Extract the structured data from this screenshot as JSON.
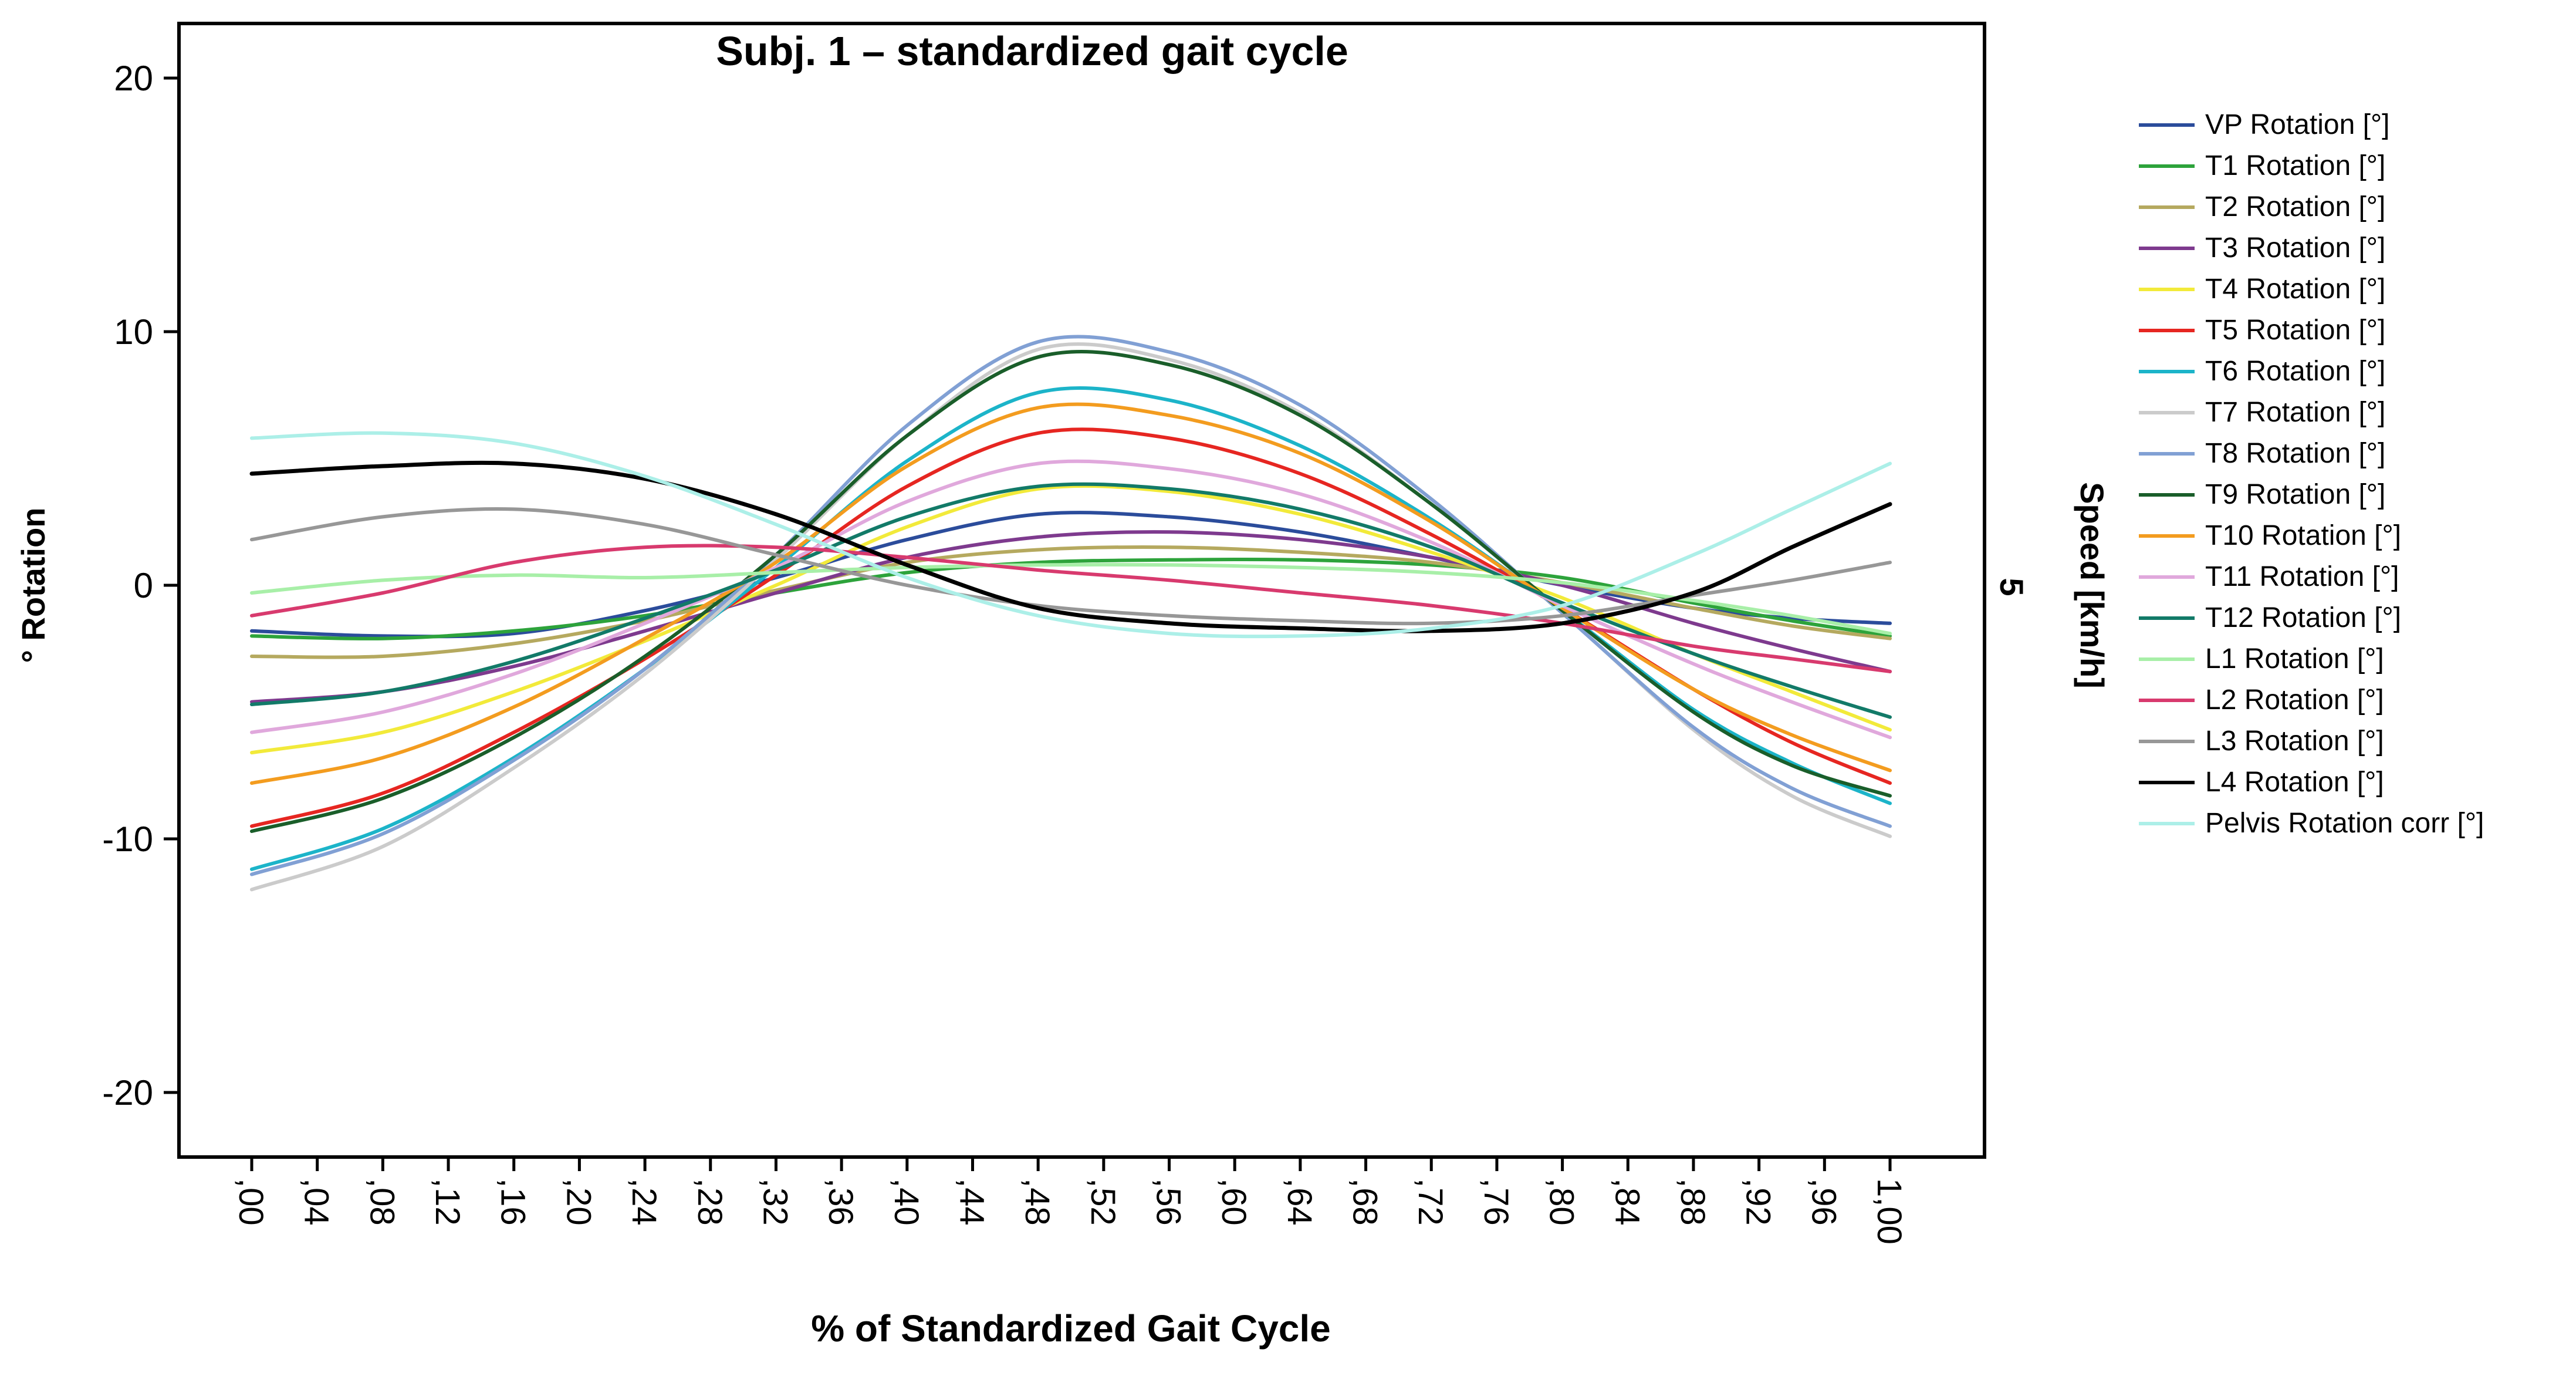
{
  "chart_data": {
    "type": "line",
    "title": "Subj. 1 – standardized gait cycle",
    "xlabel": "% of Standardized Gait Cycle",
    "ylabel": "° Rotation",
    "y2label": "Speed [km/h]",
    "y2_value_label": "5",
    "xlim": [
      0,
      1
    ],
    "ylim": [
      -22,
      22
    ],
    "grid": false,
    "legend_position": "right",
    "yticks": [
      -20,
      -10,
      0,
      10,
      20
    ],
    "ytick_labels": [
      "-20",
      "-10",
      "0",
      "10",
      "20"
    ],
    "xtick_step": 0.04,
    "xtick_labels": [
      ",00",
      ",04",
      ",08",
      ",12",
      ",16",
      ",20",
      ",24",
      ",28",
      ",32",
      ",36",
      ",40",
      ",44",
      ",48",
      ",52",
      ",56",
      ",60",
      ",64",
      ",68",
      ",72",
      ",76",
      ",80",
      ",84",
      ",88",
      ",92",
      ",96",
      "1,00"
    ],
    "x": [
      0,
      0.08,
      0.16,
      0.24,
      0.32,
      0.4,
      0.48,
      0.56,
      0.64,
      0.72,
      0.8,
      0.88,
      0.94,
      1.0
    ],
    "series": [
      {
        "name": "VP Rotation [°]",
        "color": "#2B4C9B",
        "values": [
          -1.8,
          -2.0,
          -1.9,
          -1.0,
          0.3,
          1.8,
          2.8,
          2.7,
          2.1,
          1.1,
          0.0,
          -0.9,
          -1.3,
          -1.5
        ]
      },
      {
        "name": "T1 Rotation [°]",
        "color": "#2DA33B",
        "values": [
          -2.0,
          -2.1,
          -1.8,
          -1.2,
          -0.3,
          0.5,
          0.9,
          1.0,
          1.0,
          0.8,
          0.3,
          -0.7,
          -1.4,
          -2.0
        ]
      },
      {
        "name": "T2 Rotation [°]",
        "color": "#B5A95F",
        "values": [
          -2.8,
          -2.8,
          -2.3,
          -1.4,
          -0.2,
          0.9,
          1.4,
          1.5,
          1.3,
          0.9,
          0.1,
          -0.9,
          -1.6,
          -2.1
        ]
      },
      {
        "name": "T3 Rotation [°]",
        "color": "#7E3A8E",
        "values": [
          -4.6,
          -4.2,
          -3.2,
          -1.8,
          -0.3,
          1.1,
          1.9,
          2.1,
          1.8,
          1.1,
          0.0,
          -1.5,
          -2.5,
          -3.4
        ]
      },
      {
        "name": "T4 Rotation [°]",
        "color": "#F2EA3A",
        "values": [
          -6.6,
          -5.8,
          -4.2,
          -2.2,
          0.0,
          2.3,
          3.8,
          3.7,
          2.8,
          1.3,
          -0.5,
          -2.7,
          -4.2,
          -5.7
        ]
      },
      {
        "name": "T5 Rotation [°]",
        "color": "#E62621",
        "values": [
          -9.5,
          -8.2,
          -5.8,
          -2.9,
          0.4,
          3.9,
          6.0,
          5.8,
          4.4,
          2.0,
          -0.9,
          -4.1,
          -6.2,
          -7.8
        ]
      },
      {
        "name": "T6 Rotation [°]",
        "color": "#1CB4C9",
        "values": [
          -11.2,
          -9.6,
          -6.8,
          -3.3,
          0.7,
          4.9,
          7.6,
          7.3,
          5.5,
          2.6,
          -1.0,
          -4.9,
          -7.0,
          -8.6
        ]
      },
      {
        "name": "T7 Rotation [°]",
        "color": "#CBCBCB",
        "values": [
          -12.0,
          -10.3,
          -7.2,
          -3.5,
          1.0,
          5.9,
          9.3,
          8.9,
          6.8,
          3.2,
          -1.1,
          -5.7,
          -8.3,
          -9.9
        ]
      },
      {
        "name": "T8 Rotation [°]",
        "color": "#81A0D4",
        "values": [
          -11.4,
          -9.8,
          -6.9,
          -3.3,
          1.2,
          6.3,
          9.6,
          9.2,
          7.1,
          3.4,
          -1.1,
          -5.6,
          -8.0,
          -9.5
        ]
      },
      {
        "name": "T9 Rotation [°]",
        "color": "#1A5E2A",
        "values": [
          -9.7,
          -8.4,
          -6.0,
          -2.8,
          1.2,
          5.9,
          9.0,
          8.7,
          6.7,
          3.2,
          -1.0,
          -5.0,
          -7.1,
          -8.3
        ]
      },
      {
        "name": "T10 Rotation [°]",
        "color": "#F39C1F",
        "values": [
          -7.8,
          -6.8,
          -4.8,
          -2.1,
          0.9,
          4.7,
          7.0,
          6.7,
          5.2,
          2.5,
          -0.9,
          -4.1,
          -5.9,
          -7.3
        ]
      },
      {
        "name": "T11 Rotation [°]",
        "color": "#E0A8DC",
        "values": [
          -5.8,
          -5.0,
          -3.5,
          -1.5,
          0.7,
          3.3,
          4.8,
          4.6,
          3.6,
          1.7,
          -0.8,
          -3.1,
          -4.6,
          -6.0
        ]
      },
      {
        "name": "T12 Rotation [°]",
        "color": "#127A68",
        "values": [
          -4.7,
          -4.2,
          -3.0,
          -1.3,
          0.6,
          2.7,
          3.9,
          3.8,
          3.0,
          1.5,
          -0.7,
          -2.7,
          -4.0,
          -5.2
        ]
      },
      {
        "name": "L1 Rotation [°]",
        "color": "#A8EFA8",
        "values": [
          -0.3,
          0.2,
          0.4,
          0.3,
          0.5,
          0.7,
          0.8,
          0.8,
          0.7,
          0.5,
          0.1,
          -0.6,
          -1.2,
          -1.9
        ]
      },
      {
        "name": "L2 Rotation [°]",
        "color": "#D83A6E",
        "values": [
          -1.2,
          -0.3,
          0.9,
          1.5,
          1.5,
          1.1,
          0.6,
          0.2,
          -0.3,
          -0.8,
          -1.5,
          -2.4,
          -2.9,
          -3.4
        ]
      },
      {
        "name": "L3 Rotation [°]",
        "color": "#979797",
        "values": [
          1.8,
          2.7,
          3.0,
          2.4,
          1.2,
          0.0,
          -0.8,
          -1.2,
          -1.4,
          -1.5,
          -1.2,
          -0.4,
          0.2,
          0.9
        ]
      },
      {
        "name": "L4 Rotation [°]",
        "color": "#000000",
        "values": [
          4.4,
          4.7,
          4.8,
          4.2,
          2.8,
          0.8,
          -0.9,
          -1.5,
          -1.7,
          -1.8,
          -1.5,
          -0.3,
          1.5,
          3.2
        ]
      },
      {
        "name": "Pelvis Rotation corr [°]",
        "color": "#ACEFE8",
        "values": [
          5.8,
          6.0,
          5.6,
          4.3,
          2.4,
          0.3,
          -1.2,
          -1.9,
          -2.0,
          -1.7,
          -0.8,
          1.2,
          3.0,
          4.8
        ]
      }
    ]
  }
}
